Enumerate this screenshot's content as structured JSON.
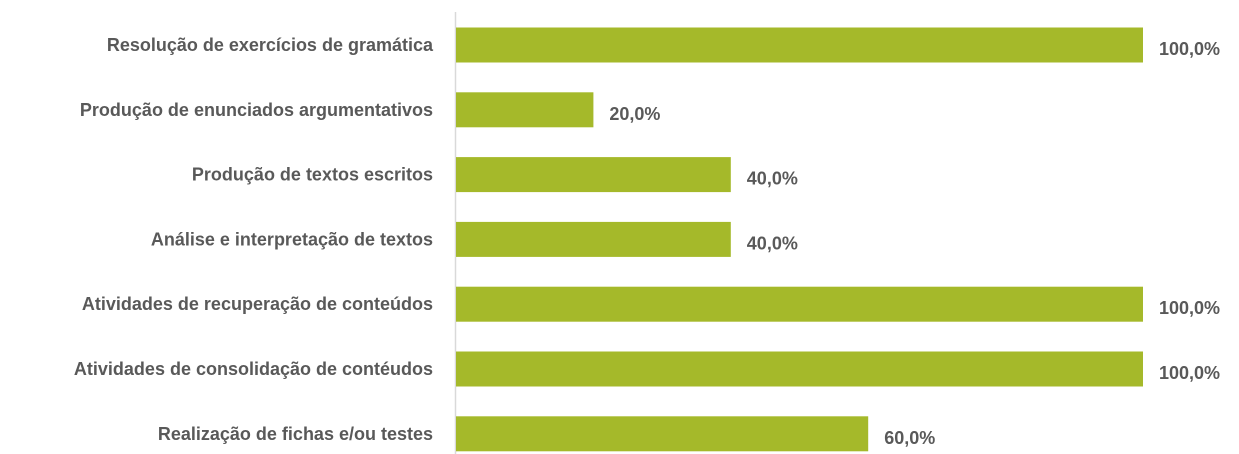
{
  "chart_data": {
    "type": "bar",
    "orientation": "horizontal",
    "categories": [
      "Resolução de exercícios de gramática",
      "Produção de enunciados argumentativos",
      "Produção de textos escritos",
      "Análise e interpretação de textos",
      "Atividades de recuperação de conteúdos",
      "Atividades de consolidação de contéudos",
      "Realização de fichas e/ou testes"
    ],
    "values": [
      100,
      20,
      40,
      40,
      100,
      100,
      60
    ],
    "value_labels": [
      "100,0%",
      "20,0%",
      "40,0%",
      "40,0%",
      "100,0%",
      "100,0%",
      "60,0%"
    ],
    "xlim": [
      0,
      100
    ],
    "grid": false,
    "legend": "none",
    "bar_color": "#a5b92a",
    "axis_color": "#d9d9d9",
    "text_color": "#595959"
  }
}
